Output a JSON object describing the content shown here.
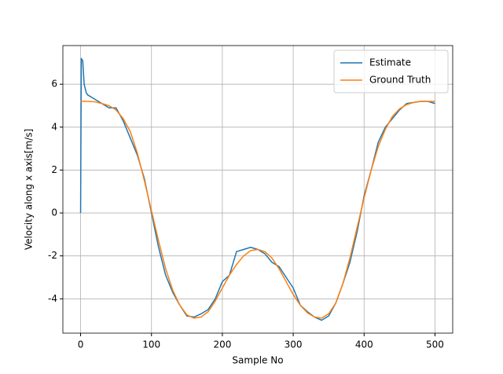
{
  "chart_data": {
    "type": "line",
    "x_label": "Sample No",
    "y_label": "Velocity along x axis[m/s]",
    "x": [
      0,
      1,
      3,
      5,
      8,
      10,
      20,
      30,
      40,
      50,
      60,
      70,
      80,
      90,
      100,
      110,
      120,
      130,
      140,
      150,
      160,
      170,
      180,
      190,
      200,
      210,
      220,
      230,
      240,
      250,
      260,
      270,
      280,
      290,
      300,
      310,
      320,
      330,
      340,
      350,
      360,
      370,
      380,
      390,
      400,
      410,
      420,
      430,
      440,
      450,
      460,
      470,
      480,
      490,
      500
    ],
    "series": [
      {
        "name": "Estimate",
        "color": "#1f77b4",
        "values": [
          0,
          7.2,
          7.1,
          6.0,
          5.6,
          5.5,
          5.3,
          5.1,
          4.9,
          4.9,
          4.3,
          3.5,
          2.7,
          1.6,
          0.0,
          -1.6,
          -2.9,
          -3.7,
          -4.3,
          -4.8,
          -4.85,
          -4.7,
          -4.5,
          -4.0,
          -3.2,
          -2.9,
          -1.8,
          -1.7,
          -1.6,
          -1.7,
          -1.9,
          -2.3,
          -2.5,
          -3.0,
          -3.5,
          -4.3,
          -4.6,
          -4.85,
          -5.0,
          -4.8,
          -4.2,
          -3.3,
          -2.3,
          -0.9,
          0.8,
          2.0,
          3.3,
          4.0,
          4.4,
          4.8,
          5.1,
          5.15,
          5.2,
          5.2,
          5.1
        ]
      },
      {
        "name": "Ground Truth",
        "color": "#ff7f0e",
        "values": [
          5.2,
          5.2,
          5.2,
          5.2,
          5.2,
          5.2,
          5.18,
          5.1,
          5.0,
          4.8,
          4.4,
          3.8,
          2.8,
          1.5,
          0.1,
          -1.3,
          -2.6,
          -3.6,
          -4.3,
          -4.75,
          -4.9,
          -4.85,
          -4.6,
          -4.1,
          -3.5,
          -2.9,
          -2.4,
          -2.0,
          -1.75,
          -1.7,
          -1.8,
          -2.1,
          -2.6,
          -3.2,
          -3.8,
          -4.3,
          -4.65,
          -4.85,
          -4.9,
          -4.7,
          -4.2,
          -3.3,
          -2.1,
          -0.7,
          0.7,
          2.0,
          3.1,
          3.9,
          4.5,
          4.85,
          5.05,
          5.15,
          5.2,
          5.2,
          5.2
        ]
      }
    ],
    "xlim": [
      -25,
      525
    ],
    "ylim": [
      -5.6,
      7.8
    ],
    "xticks": [
      0,
      100,
      200,
      300,
      400,
      500
    ],
    "yticks": [
      -4,
      -2,
      0,
      2,
      4,
      6
    ],
    "grid": true,
    "legend": "upper right"
  }
}
